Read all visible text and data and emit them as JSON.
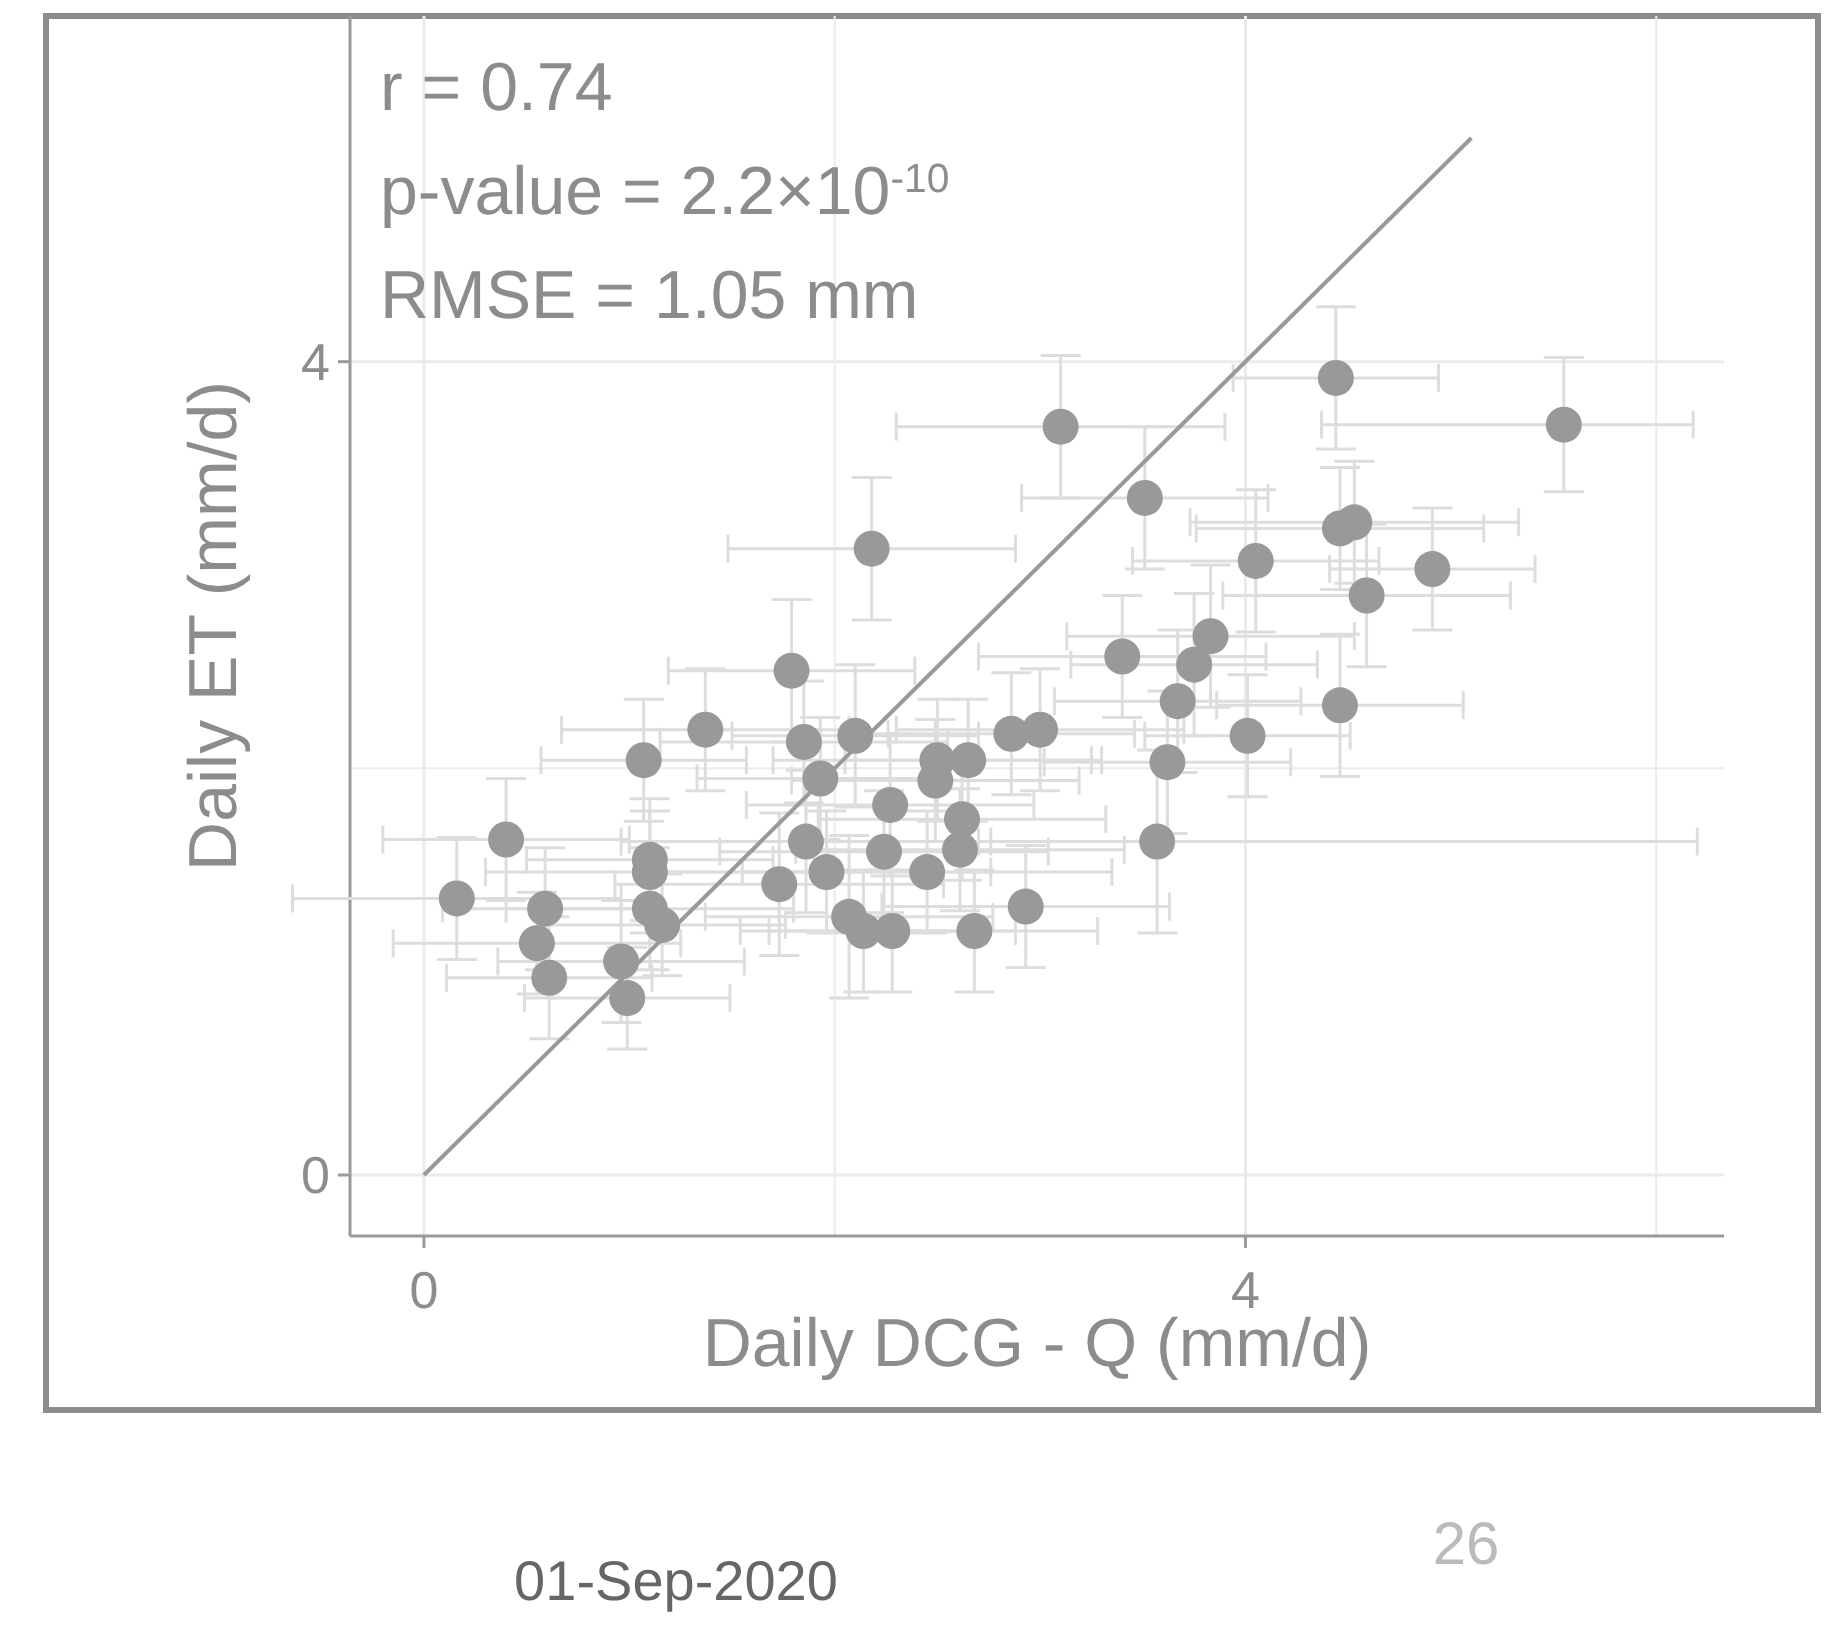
{
  "chart_data": {
    "type": "scatter",
    "xlabel": "Daily DCG - Q (mm/d)",
    "ylabel": "Daily ET (mm/d)",
    "xlim": [
      -0.36,
      6.33
    ],
    "ylim": [
      -0.3,
      5.7
    ],
    "xticks": [
      0,
      {
        "value": 2,
        "label": null
      },
      4,
      {
        "value": 6,
        "label": null
      }
    ],
    "yticks": [
      0,
      {
        "value": 2,
        "label": null
      },
      4
    ],
    "grid": true,
    "annotations": [
      "r = 0.74",
      "p-value = 2.2×10$^{-10}$",
      "RMSE = 1.05 mm",
      "01-Sep-2020",
      "26"
    ],
    "series": [
      {
        "marker": "circle",
        "color": "#999999",
        "x": [
          0.16,
          0.4,
          0.59,
          0.55,
          0.61,
          0.96,
          0.99,
          1.07,
          1.1,
          1.1,
          1.1,
          1.16,
          1.37,
          1.73,
          1.79,
          1.85,
          1.86,
          1.93,
          1.96,
          2.07,
          2.1,
          2.14,
          2.18,
          2.24,
          2.27,
          2.28,
          2.45,
          2.49,
          2.5,
          2.61,
          2.62,
          2.65,
          2.68,
          2.86,
          2.93,
          3.0,
          3.1,
          3.4,
          3.51,
          3.57,
          3.62,
          3.67,
          3.75,
          3.83,
          4.01,
          4.05,
          4.44,
          4.46,
          4.46,
          4.53,
          4.59,
          4.91,
          5.55
        ],
        "values": [
          1.36,
          1.65,
          1.31,
          1.14,
          0.97,
          1.05,
          0.87,
          2.04,
          1.55,
          1.49,
          1.31,
          1.23,
          2.19,
          1.43,
          2.48,
          2.13,
          1.64,
          1.95,
          1.49,
          1.27,
          2.16,
          1.2,
          3.08,
          1.59,
          1.82,
          1.2,
          1.49,
          1.94,
          2.04,
          1.6,
          1.75,
          2.04,
          1.2,
          2.17,
          1.32,
          2.19,
          3.68,
          2.55,
          3.33,
          1.64,
          2.03,
          2.33,
          2.51,
          2.65,
          2.16,
          3.02,
          3.92,
          2.31,
          3.18,
          3.21,
          2.85,
          2.98,
          3.69
        ],
        "xerrors": [
          0.8,
          0.6,
          0.5,
          0.7,
          0.5,
          0.6,
          0.5,
          0.5,
          0.6,
          0.8,
          0.7,
          0.6,
          0.7,
          0.8,
          0.6,
          0.7,
          0.9,
          0.6,
          0.8,
          0.7,
          0.6,
          0.6,
          0.7,
          0.8,
          0.7,
          0.6,
          0.9,
          0.7,
          0.8,
          0.8,
          0.7,
          0.6,
          0.6,
          0.6,
          0.7,
          0.7,
          0.8,
          0.7,
          0.6,
          [
            2.7,
            6.2
          ],
          0.6,
          0.6,
          0.6,
          0.7,
          0.5,
          0.6,
          0.5,
          0.6,
          0.7,
          0.8,
          0.7,
          0.5,
          [
            4.37,
            6.18
          ]
        ],
        "errors": [
          0.3,
          0.3,
          0.3,
          0.25,
          0.3,
          0.3,
          0.25,
          0.3,
          0.3,
          0.3,
          0.3,
          0.25,
          0.3,
          0.35,
          0.35,
          0.3,
          0.35,
          0.3,
          0.3,
          0.4,
          0.35,
          0.3,
          0.35,
          0.3,
          0.35,
          0.3,
          0.3,
          0.3,
          0.3,
          0.3,
          0.3,
          0.3,
          0.3,
          0.3,
          0.3,
          0.3,
          0.35,
          0.3,
          0.35,
          0.45,
          0.35,
          0.35,
          0.35,
          0.35,
          0.3,
          0.35,
          0.35,
          0.35,
          0.3,
          0.3,
          0.35,
          0.3,
          0.33
        ]
      },
      {
        "type": "line",
        "color": "#999999",
        "x": [
          0,
          5.1
        ],
        "values": [
          0,
          5.1
        ]
      }
    ]
  }
}
